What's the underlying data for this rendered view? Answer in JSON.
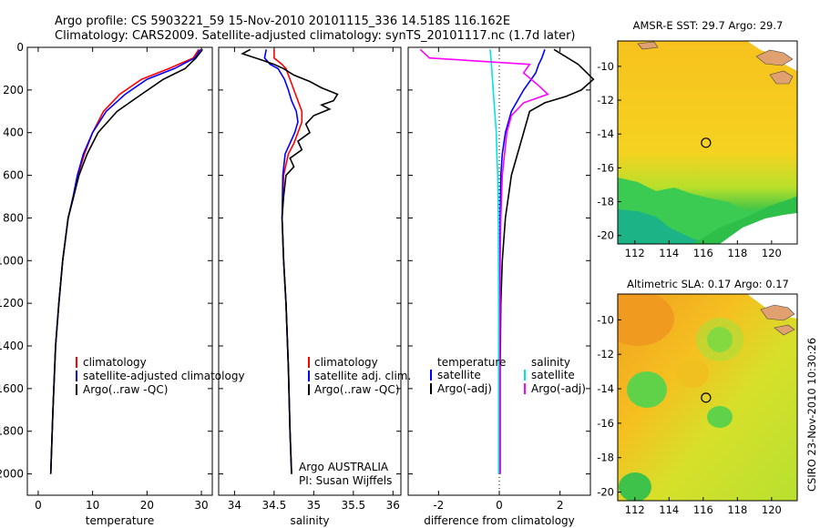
{
  "header": {
    "line1": "Argo profile: CS 5903221_59 15-Nov-2010 20101115_336 14.518S 116.162E",
    "line2": "Climatology: CARS2009. Satellite-adjusted climatology: synTS_20101117.nc (1.7d later)"
  },
  "colors": {
    "climatology": "#ff0000",
    "satellite": "#0000ff",
    "argo": "#000000",
    "sat_diff": "#00e5e5",
    "argo_adj": "#ff00ff"
  },
  "chart_data": [
    {
      "type": "line",
      "id": "temperature",
      "xlabel": "temperature",
      "xlim": [
        -2,
        32
      ],
      "ylim": [
        0,
        2100
      ],
      "xticks": [
        0,
        10,
        20,
        30
      ],
      "yticks": [
        0,
        200,
        400,
        600,
        800,
        1000,
        1200,
        1400,
        1600,
        1800,
        2000
      ],
      "legend": [
        "climatology",
        "satellite-adjusted climatology",
        "Argo(..raw -QC)"
      ],
      "series": [
        {
          "name": "climatology",
          "color": "#ff0000",
          "x": [
            29.5,
            28.5,
            24,
            19,
            15,
            12,
            10,
            8.5,
            7.3,
            6.5,
            5.5,
            4.5,
            3.8,
            3.2,
            2.7,
            2.3
          ],
          "y": [
            10,
            50,
            100,
            150,
            220,
            300,
            400,
            500,
            600,
            700,
            800,
            1000,
            1200,
            1400,
            1700,
            2000
          ]
        },
        {
          "name": "satellite-adjusted climatology",
          "color": "#0000ff",
          "x": [
            29.8,
            28.8,
            25,
            20,
            16,
            12.5,
            10,
            8.3,
            7.2,
            6.4,
            5.5,
            4.5,
            3.8,
            3.2,
            2.7,
            2.3
          ],
          "y": [
            10,
            50,
            100,
            150,
            220,
            300,
            400,
            500,
            600,
            700,
            800,
            1000,
            1200,
            1400,
            1700,
            2000
          ]
        },
        {
          "name": "Argo(..raw -QC)",
          "color": "#000000",
          "x": [
            30.2,
            29,
            27,
            23,
            19,
            14.5,
            11,
            9,
            7.5,
            6.5,
            5.5,
            4.5,
            3.8,
            3.2,
            2.7,
            2.3
          ],
          "y": [
            10,
            50,
            100,
            150,
            220,
            300,
            400,
            500,
            600,
            700,
            800,
            1000,
            1200,
            1400,
            1700,
            2000
          ]
        }
      ]
    },
    {
      "type": "line",
      "id": "salinity",
      "xlabel": "salinity",
      "xlim": [
        33.8,
        36.1
      ],
      "ylim": [
        0,
        2100
      ],
      "xticks": [
        34,
        34.5,
        35,
        35.5,
        36
      ],
      "legend": [
        "climatology",
        "satellite adj. clim.",
        "Argo(..raw -QC)"
      ],
      "annotation": [
        "Argo AUSTRALIA",
        "PI: Susan Wijffels"
      ],
      "series": [
        {
          "name": "climatology",
          "color": "#ff0000",
          "x": [
            34.5,
            34.5,
            34.6,
            34.65,
            34.7,
            34.75,
            34.8,
            34.85,
            34.85,
            34.8,
            34.75,
            34.68,
            34.62,
            34.6,
            34.62,
            34.65,
            34.68,
            34.7,
            34.72
          ],
          "y": [
            10,
            50,
            80,
            100,
            150,
            200,
            250,
            300,
            350,
            400,
            450,
            500,
            600,
            800,
            1000,
            1200,
            1500,
            1800,
            2000
          ]
        },
        {
          "name": "satellite adj. clim.",
          "color": "#0000ff",
          "x": [
            34.4,
            34.38,
            34.45,
            34.55,
            34.63,
            34.68,
            34.72,
            34.78,
            34.8,
            34.76,
            34.7,
            34.64,
            34.61,
            34.6,
            34.62,
            34.65,
            34.68,
            34.7,
            34.72
          ],
          "y": [
            10,
            50,
            80,
            100,
            150,
            200,
            250,
            300,
            350,
            400,
            450,
            500,
            600,
            800,
            1000,
            1200,
            1500,
            1800,
            2000
          ]
        },
        {
          "name": "Argo(..raw -QC)",
          "color": "#000000",
          "x": [
            34.2,
            34.1,
            34.35,
            34.5,
            34.62,
            34.75,
            34.95,
            35.1,
            35.3,
            35.25,
            35.1,
            35.2,
            35.0,
            34.9,
            34.95,
            34.8,
            34.85,
            34.7,
            34.75,
            34.65,
            34.62,
            34.6,
            34.62,
            34.65,
            34.68,
            34.7,
            34.72
          ],
          "y": [
            10,
            30,
            60,
            80,
            100,
            130,
            160,
            190,
            220,
            250,
            270,
            290,
            320,
            360,
            400,
            440,
            480,
            520,
            560,
            600,
            700,
            800,
            1000,
            1200,
            1500,
            1800,
            2000
          ]
        }
      ]
    },
    {
      "type": "line",
      "id": "difference",
      "xlabel": "difference from climatology",
      "xlim": [
        -3,
        3
      ],
      "ylim": [
        0,
        2100
      ],
      "xticks": [
        -2,
        0,
        2
      ],
      "legend": [
        "temperature",
        "satellite",
        "Argo(-adj)",
        "salinity",
        "satellite",
        "Argo(-adj)"
      ],
      "series": [
        {
          "name": "temperature satellite",
          "color": "#0000ff",
          "x": [
            1.5,
            1.4,
            1.3,
            1.2,
            0.8,
            0.4,
            0.2,
            0.1,
            0.05,
            0.03,
            0.02,
            0.02,
            0.02
          ],
          "y": [
            10,
            50,
            80,
            120,
            200,
            300,
            400,
            500,
            600,
            800,
            1000,
            1500,
            2000
          ]
        },
        {
          "name": "temperature Argo(-adj)",
          "color": "#000000",
          "x": [
            1.8,
            2.6,
            3.1,
            2.7,
            2.2,
            1.5,
            1.0,
            0.8,
            0.6,
            0.4,
            0.2,
            0.1,
            0.05,
            0.03,
            0.03
          ],
          "y": [
            10,
            80,
            150,
            200,
            230,
            260,
            300,
            400,
            500,
            600,
            800,
            1000,
            1200,
            1500,
            2000
          ]
        },
        {
          "name": "salinity satellite",
          "color": "#00e5e5",
          "x": [
            -0.3,
            -0.25,
            -0.2,
            -0.15,
            -0.1,
            -0.08,
            -0.05,
            -0.03,
            -0.02,
            -0.02
          ],
          "y": [
            10,
            100,
            200,
            300,
            400,
            500,
            600,
            800,
            1200,
            2000
          ]
        },
        {
          "name": "salinity Argo(-adj)",
          "color": "#ff00ff",
          "x": [
            -2.6,
            -2.3,
            1.0,
            0.8,
            1.3,
            1.6,
            0.8,
            0.4,
            0.25,
            0.1,
            0.05,
            0.03,
            0.02,
            0.02
          ],
          "y": [
            10,
            50,
            80,
            120,
            180,
            220,
            260,
            320,
            400,
            600,
            800,
            1000,
            1500,
            2000
          ]
        }
      ]
    },
    {
      "type": "heatmap",
      "id": "sst-map",
      "title": "AMSR-E SST: 29.7 Argo: 29.7",
      "xlim": [
        111,
        121.5
      ],
      "ylim": [
        -20.5,
        -8.5
      ],
      "xticks": [
        112,
        114,
        116,
        118,
        120
      ],
      "yticks": [
        -10,
        -12,
        -14,
        -16,
        -18,
        -20
      ],
      "argo_location": {
        "lon": 116.162,
        "lat": -14.518
      }
    },
    {
      "type": "heatmap",
      "id": "sla-map",
      "title": "Altimetric SLA: 0.17 Argo: 0.17",
      "xlim": [
        111,
        121.5
      ],
      "ylim": [
        -20.5,
        -8.5
      ],
      "xticks": [
        112,
        114,
        116,
        118,
        120
      ],
      "yticks": [
        -10,
        -12,
        -14,
        -16,
        -18,
        -20
      ],
      "argo_location": {
        "lon": 116.162,
        "lat": -14.518
      }
    }
  ],
  "credit": "CSIRO 23-Nov-2010 10:30:26"
}
